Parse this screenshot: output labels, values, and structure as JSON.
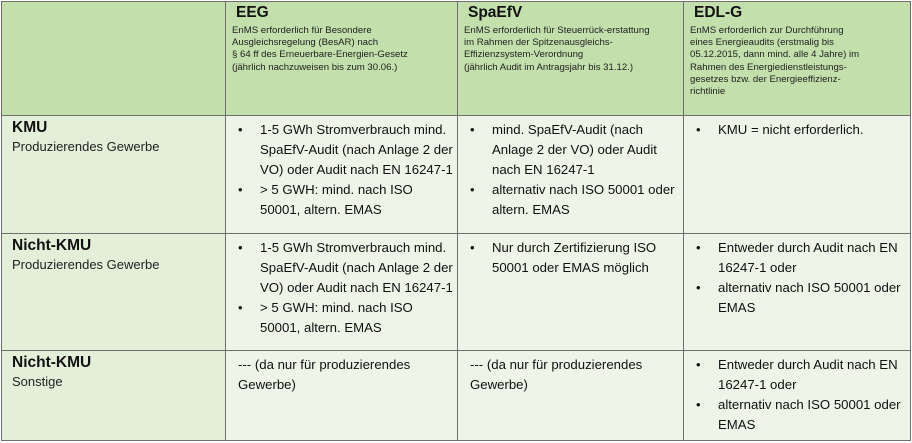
{
  "columns": [
    {
      "title": "EEG",
      "lines": [
        "EnMS erforderlich für Besondere",
        "Ausgleichsregelung (BesAR) nach",
        "§ 64 ff des Erneuerbare-Energien-Gesetz",
        "(jährlich nachzuweisen bis zum 30.06.)"
      ]
    },
    {
      "title": "SpaEfV",
      "lines": [
        "EnMS erforderlich für Steuerrück-erstattung",
        "im Rahmen der Spitzenausgleichs-",
        "Effizienzsystem-Verordnung",
        "(jährlich Audit im Antragsjahr bis 31.12.)"
      ]
    },
    {
      "title": "EDL-G",
      "lines": [
        "EnMS erforderlich zur Durchführung",
        "eines Energieaudits (erstmalig bis",
        "05.12.2015, dann mind. alle 4 Jahre) im",
        "Rahmen des Energiedienstleistungs-",
        "gesetzes bzw. der Energieeffizienz-",
        "richtlinie"
      ]
    }
  ],
  "rows": [
    {
      "title": "KMU",
      "subtitle": "Produzierendes Gewerbe",
      "eeg": [
        "1-5 GWh Stromverbrauch mind. SpaEfV-Audit (nach Anlage 2 der VO) oder Audit nach EN 16247-1",
        "> 5 GWH: mind. nach ISO 50001, altern. EMAS"
      ],
      "spaefv": [
        "mind. SpaEfV-Audit (nach Anlage 2 der VO) oder Audit nach EN 16247-1",
        "alternativ nach ISO 50001 oder altern. EMAS"
      ],
      "edlg": [
        "KMU = nicht erforderlich."
      ]
    },
    {
      "title": "Nicht-KMU",
      "subtitle": "Produzierendes Gewerbe",
      "eeg": [
        "1-5 GWh Stromverbrauch mind. SpaEfV-Audit (nach Anlage 2 der VO) oder Audit nach EN 16247-1",
        "> 5 GWH: mind. nach ISO 50001, altern. EMAS"
      ],
      "spaefv": [
        "Nur durch Zertifizierung ISO 50001 oder EMAS möglich"
      ],
      "edlg": [
        "Entweder durch Audit nach EN 16247-1 oder",
        "alternativ nach ISO 50001 oder EMAS"
      ]
    },
    {
      "title": "Nicht-KMU",
      "subtitle": "Sonstige",
      "eeg_text": "--- (da nur für produzierendes Gewerbe)",
      "spaefv_text": "--- (da nur für produzierendes Gewerbe)",
      "edlg": [
        "Entweder durch Audit nach EN 16247-1 oder",
        "alternativ nach ISO 50001 oder EMAS"
      ]
    }
  ],
  "bullet_char": "•"
}
